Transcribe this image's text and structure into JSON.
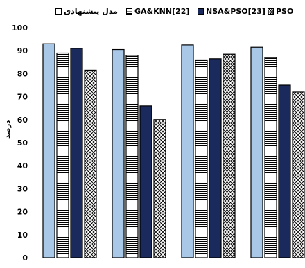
{
  "chart_data": {
    "type": "bar",
    "ylabel": "درصد",
    "ylim": [
      0,
      100
    ],
    "yticks": [
      0,
      10,
      20,
      30,
      40,
      50,
      60,
      70,
      80,
      90,
      100
    ],
    "grid": false,
    "legend_position": "top",
    "groups": 4,
    "series": [
      {
        "name": "مدل پیشنهادی",
        "color": "#a9c8e8",
        "pattern": "solid",
        "values": [
          93,
          90.5,
          92.5,
          91.5
        ]
      },
      {
        "name": "GA&KNN[22]",
        "color": "#ffffff",
        "pattern": "horizontal-lines",
        "values": [
          89,
          88,
          86,
          87
        ]
      },
      {
        "name": "NSA&PSO[23]",
        "color": "#1a2a5c",
        "pattern": "solid",
        "values": [
          91,
          66,
          86.5,
          75
        ]
      },
      {
        "name": "PSO",
        "color": "#ffffff",
        "pattern": "crosshatch",
        "values": [
          81.5,
          60,
          88.5,
          72
        ]
      }
    ]
  }
}
